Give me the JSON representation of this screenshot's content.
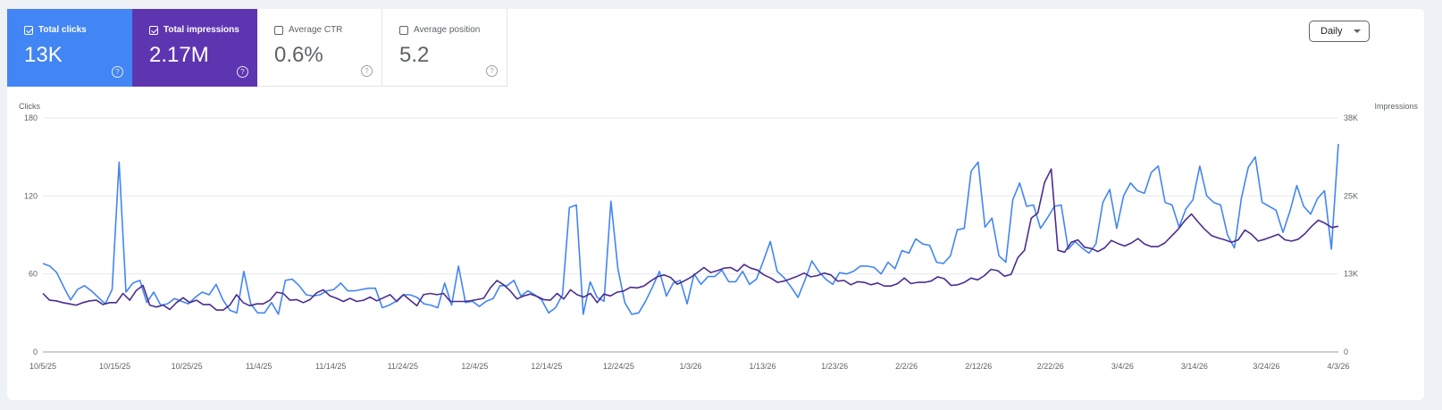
{
  "metrics": {
    "clicks": {
      "label": "Total clicks",
      "value": "13K",
      "checked": true,
      "color": "#4285f4",
      "help": "?"
    },
    "impressions": {
      "label": "Total impressions",
      "value": "2.17M",
      "checked": true,
      "color": "#5e35b1",
      "help": "?"
    },
    "ctr": {
      "label": "Average CTR",
      "value": "0.6%",
      "checked": false,
      "help": "?"
    },
    "position": {
      "label": "Average position",
      "value": "5.2",
      "checked": false,
      "help": "?"
    }
  },
  "granularity": {
    "selected": "Daily"
  },
  "chart_data": {
    "type": "line",
    "x_tick_labels": [
      "10/5/25",
      "10/15/25",
      "10/25/25",
      "11/4/25",
      "11/14/25",
      "11/24/25",
      "12/4/25",
      "12/14/25",
      "12/24/25",
      "1/3/26",
      "1/13/26",
      "1/23/26",
      "2/2/26",
      "2/12/26",
      "2/22/26",
      "3/4/26",
      "3/14/26",
      "3/24/26",
      "4/3/26"
    ],
    "x_start": "10/5/25",
    "x_end": "4/3/26",
    "y_left": {
      "label": "Clicks",
      "ticks": [
        "0",
        "60",
        "120",
        "180"
      ],
      "range": [
        0,
        180
      ]
    },
    "y_right": {
      "label": "Impressions",
      "ticks": [
        "0",
        "13K",
        "25K",
        "38K"
      ],
      "range": [
        0,
        38000
      ]
    },
    "grid": true,
    "series": [
      {
        "name": "Total clicks",
        "axis": "left",
        "color": "#4285f4",
        "values": [
          68,
          66,
          61,
          50,
          40,
          48,
          51,
          47,
          42,
          37,
          48,
          146,
          46,
          53,
          55,
          38,
          46,
          36,
          37,
          41,
          39,
          37,
          42,
          46,
          44,
          52,
          40,
          32,
          30,
          62,
          37,
          30,
          30,
          38,
          29,
          55,
          56,
          51,
          44,
          43,
          44,
          47,
          48,
          53,
          47,
          47,
          48,
          49,
          49,
          34,
          36,
          39,
          44,
          44,
          42,
          37,
          36,
          34,
          53,
          36,
          66,
          38,
          39,
          35,
          39,
          41,
          51,
          51,
          55,
          43,
          47,
          44,
          40,
          30,
          34,
          44,
          111,
          113,
          29,
          54,
          42,
          39,
          116,
          64,
          38,
          29,
          30,
          39,
          50,
          62,
          43,
          53,
          55,
          37,
          60,
          52,
          58,
          58,
          63,
          54,
          54,
          62,
          52,
          56,
          70,
          85,
          62,
          57,
          50,
          42,
          55,
          70,
          62,
          56,
          52,
          61,
          60,
          62,
          66,
          66,
          65,
          60,
          69,
          64,
          78,
          76,
          87,
          83,
          82,
          69,
          68,
          74,
          94,
          95,
          139,
          146,
          96,
          103,
          74,
          69,
          117,
          130,
          112,
          113,
          95,
          103,
          112,
          113,
          79,
          85,
          80,
          76,
          83,
          115,
          125,
          95,
          120,
          130,
          124,
          122,
          138,
          143,
          115,
          113,
          96,
          110,
          117,
          143,
          120,
          115,
          113,
          90,
          80,
          118,
          142,
          150,
          115,
          112,
          109,
          92,
          108,
          128,
          112,
          106,
          118,
          124,
          79,
          160
        ]
      },
      {
        "name": "Total impressions",
        "axis": "right",
        "color": "#4a2d8f",
        "values": [
          9500,
          8400,
          8300,
          8000,
          7800,
          7600,
          8000,
          8300,
          8400,
          7700,
          8000,
          8000,
          9500,
          8400,
          10000,
          10800,
          7600,
          7300,
          7600,
          6900,
          8000,
          8800,
          8000,
          8400,
          7700,
          7700,
          6800,
          6800,
          7600,
          9300,
          8000,
          7500,
          7800,
          7800,
          8400,
          9700,
          9500,
          8400,
          8500,
          8000,
          8500,
          9600,
          10100,
          9100,
          8700,
          8200,
          8700,
          8200,
          8400,
          8900,
          8300,
          8800,
          9300,
          8200,
          9300,
          8400,
          7500,
          9300,
          9500,
          9300,
          9500,
          8200,
          8200,
          8200,
          8300,
          8500,
          8700,
          10400,
          11600,
          10900,
          9900,
          8600,
          9100,
          9400,
          9000,
          8500,
          8400,
          9500,
          8600,
          10100,
          9300,
          8900,
          9500,
          8000,
          9400,
          9100,
          9700,
          9900,
          10500,
          10400,
          10700,
          11500,
          12200,
          12500,
          12100,
          11000,
          11500,
          12100,
          12900,
          13700,
          12900,
          13200,
          13600,
          13700,
          13100,
          14200,
          13600,
          13300,
          12500,
          12000,
          11300,
          11500,
          11900,
          12300,
          12800,
          12200,
          12400,
          12800,
          12500,
          11500,
          11600,
          10900,
          11400,
          11300,
          10900,
          11200,
          10700,
          10700,
          11100,
          12000,
          11100,
          11300,
          11300,
          11500,
          12200,
          11900,
          10800,
          10900,
          11300,
          12000,
          11700,
          12400,
          13400,
          13200,
          12300,
          12600,
          15300,
          16500,
          21700,
          22600,
          27500,
          29700,
          16500,
          16200,
          17800,
          18200,
          17000,
          16800,
          16300,
          16900,
          18100,
          17600,
          17200,
          17700,
          18400,
          17500,
          17100,
          17100,
          17700,
          18800,
          19900,
          21300,
          22400,
          21100,
          19900,
          18900,
          18500,
          18200,
          17800,
          18200,
          19800,
          19100,
          18000,
          18300,
          18700,
          19100,
          18200,
          18000,
          18300,
          19200,
          20400,
          21400,
          20900,
          20200,
          20400
        ]
      }
    ]
  }
}
